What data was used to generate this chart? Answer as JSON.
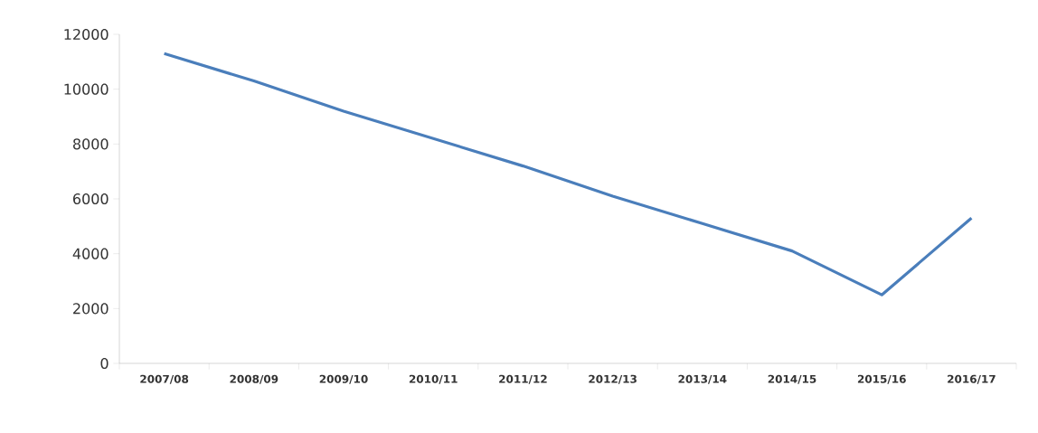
{
  "chart_data": {
    "type": "line",
    "categories": [
      "2007/08",
      "2008/09",
      "2009/10",
      "2010/11",
      "2011/12",
      "2012/13",
      "2013/14",
      "2014/15",
      "2015/16",
      "2016/17"
    ],
    "values": [
      11300,
      10300,
      9200,
      8200,
      7200,
      6100,
      5100,
      4100,
      2500,
      5300
    ],
    "color": "#4a7ebb",
    "ylim": [
      0,
      12000
    ],
    "yticks": [
      0,
      2000,
      4000,
      6000,
      8000,
      10000,
      12000
    ],
    "grid": false,
    "marker": "none",
    "line_style": "solid"
  }
}
